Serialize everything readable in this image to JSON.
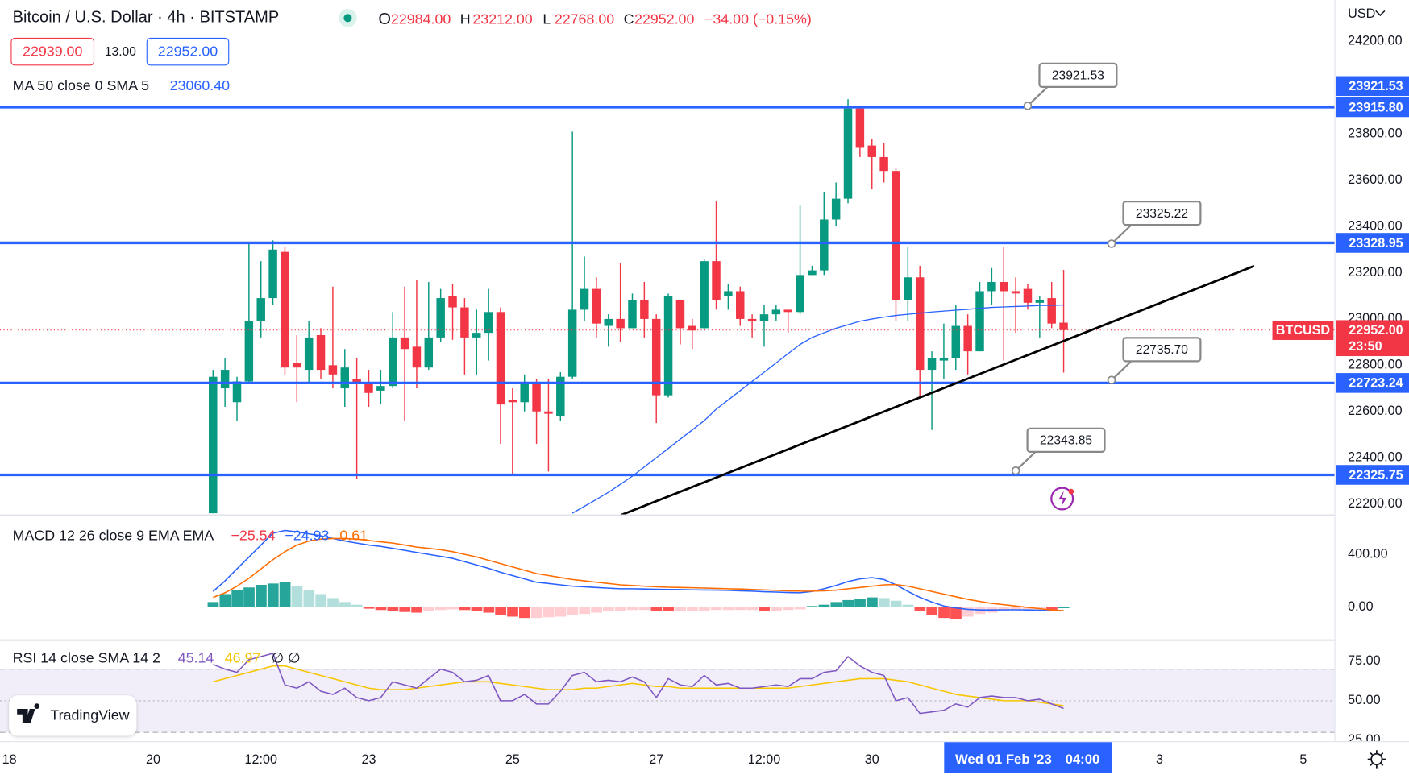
{
  "chart_data": [
    {
      "type": "candlestick",
      "title": "Bitcoin / U.S. Dollar · 4h · BITSTAMP",
      "ohlc": [
        {
          "key": "O",
          "value": "22984.00"
        },
        {
          "key": "H",
          "value": "23212.00"
        },
        {
          "key": "L",
          "value": "22768.00"
        },
        {
          "key": "C",
          "value": "22952.00"
        }
      ],
      "change": "−34.00 (−0.15%)",
      "bid": "22939.00",
      "spread": "13.00",
      "ask": "22952.00",
      "currency": "USD",
      "up_color": "#089981",
      "down_color": "#f23645",
      "open": [
        22160,
        22700,
        22640,
        22730,
        22990,
        23090,
        23290,
        22810,
        22780,
        22930,
        22800,
        22700,
        22740,
        22720,
        22690,
        22710,
        22920,
        22880,
        22790,
        22920,
        23100,
        23050,
        22920,
        22940,
        23030,
        22650,
        22640,
        22720,
        22600,
        22580,
        22750,
        23040,
        23130,
        22970,
        23000,
        22960,
        23080,
        23000,
        22670,
        23080,
        22970,
        22960,
        23250,
        23100,
        23120,
        23000,
        22990,
        23020,
        23040,
        23030,
        23190,
        23210,
        23430,
        23520,
        23910,
        23750,
        23700,
        23640,
        23080,
        23180,
        22780,
        22820,
        22830,
        22970,
        22860,
        23120,
        23160,
        23120,
        23130,
        23070,
        23090,
        22984
      ],
      "high": [
        22780,
        22830,
        22750,
        23330,
        23250,
        23340,
        23310,
        22930,
        22990,
        22960,
        23140,
        22870,
        22830,
        22780,
        22780,
        23030,
        23140,
        23170,
        23160,
        23130,
        23150,
        23090,
        23040,
        23130,
        23050,
        22700,
        22760,
        22740,
        22740,
        22770,
        23810,
        23270,
        23180,
        23020,
        23240,
        23110,
        23160,
        23020,
        23110,
        23080,
        23000,
        23260,
        23510,
        23150,
        23140,
        23020,
        23060,
        23060,
        23040,
        23490,
        23230,
        23550,
        23590,
        23950,
        23920,
        23780,
        23760,
        23650,
        23310,
        23230,
        22860,
        22980,
        23060,
        23020,
        23160,
        23220,
        23310,
        23180,
        23150,
        23100,
        23160,
        23212
      ],
      "low": [
        22160,
        22620,
        22560,
        22720,
        22920,
        23060,
        22760,
        22640,
        22720,
        22740,
        22700,
        22620,
        22310,
        22620,
        22630,
        22700,
        22560,
        22700,
        22780,
        22900,
        22910,
        22760,
        22760,
        22820,
        22460,
        22330,
        22600,
        22460,
        22340,
        22560,
        22740,
        22990,
        22920,
        22880,
        22900,
        22960,
        22920,
        22550,
        22660,
        22890,
        22870,
        22950,
        23040,
        23040,
        22970,
        22920,
        22880,
        22990,
        22940,
        23020,
        23190,
        23190,
        23400,
        23500,
        23700,
        23560,
        23590,
        22990,
        22990,
        22660,
        22520,
        22740,
        22780,
        22760,
        22860,
        23060,
        22820,
        22940,
        23040,
        22920,
        22960,
        22768
      ],
      "close": [
        22750,
        22780,
        22730,
        22990,
        23090,
        23300,
        22790,
        22790,
        22920,
        22780,
        22760,
        22790,
        22720,
        22680,
        22710,
        22920,
        22870,
        22790,
        22920,
        23090,
        23050,
        22920,
        22940,
        23030,
        22630,
        22640,
        22720,
        22600,
        22590,
        22750,
        23040,
        23130,
        22980,
        23000,
        22960,
        23080,
        23000,
        22670,
        23100,
        22960,
        22950,
        23250,
        23080,
        23120,
        23000,
        22990,
        23020,
        23040,
        23030,
        23190,
        23210,
        23430,
        23520,
        23910,
        23740,
        23700,
        23640,
        23080,
        23180,
        22780,
        22830,
        22830,
        22970,
        22860,
        23120,
        23160,
        23120,
        23110,
        23070,
        23080,
        22980,
        22952
      ],
      "series": [
        {
          "name": "MA 50 close 0 SMA 5",
          "color": "#2962ff",
          "label": "23060.40",
          "values": [
            null,
            null,
            null,
            null,
            null,
            null,
            null,
            null,
            null,
            null,
            null,
            null,
            null,
            null,
            null,
            null,
            null,
            null,
            null,
            null,
            null,
            null,
            null,
            null,
            null,
            null,
            null,
            null,
            null,
            null,
            22160,
            22190,
            22220,
            22250,
            22285,
            22320,
            22360,
            22400,
            22440,
            22480,
            22520,
            22560,
            22610,
            22650,
            22690,
            22730,
            22770,
            22810,
            22850,
            22890,
            22920,
            22940,
            22960,
            22975,
            22990,
            23000,
            23008,
            23015,
            23020,
            23025,
            23030,
            23034,
            23038,
            23042,
            23046,
            23050,
            23052,
            23054,
            23056,
            23058,
            23059,
            23060.4
          ]
        }
      ],
      "levels": [
        {
          "value": 23915.8,
          "label": "23915.80"
        },
        {
          "value": 23328.95,
          "label": "23328.95"
        },
        {
          "value": 22723.24,
          "label": "22723.24"
        },
        {
          "value": 22325.75,
          "label": "22325.75"
        }
      ],
      "level_color": "#2962ff",
      "trendline": {
        "x": [
          34.1,
          86.9
        ],
        "y": [
          22153,
          23229
        ],
        "color": "#000000"
      },
      "annotations": [
        {
          "x": 68,
          "y": 23921.53,
          "label": "23921.53",
          "on_axis": true
        },
        {
          "x": 75,
          "y": 23325.22,
          "label": "23325.22",
          "on_axis": false
        },
        {
          "x": 75,
          "y": 22735.7,
          "label": "22735.70",
          "on_axis": false
        },
        {
          "x": 67,
          "y": 22343.85,
          "label": "22343.85",
          "on_axis": false
        }
      ],
      "last": {
        "value": 22952,
        "label": "22952.00",
        "countdown": "23:50",
        "symbol": "BTCUSD",
        "color": "#f23645"
      },
      "crosshair": {
        "x": 68,
        "date": "Wed 01 Feb '23",
        "time": "04:00"
      },
      "xlim": [
        -17.78,
        93.6
      ],
      "ylim": [
        22153,
        24379
      ],
      "yticks": [
        {
          "value": 24200,
          "label": "24200.00"
        },
        {
          "value": 23800,
          "label": "23800.00"
        },
        {
          "value": 23600,
          "label": "23600.00"
        },
        {
          "value": 23400,
          "label": "23400.00"
        },
        {
          "value": 23200,
          "label": "23200.00"
        },
        {
          "value": 23000,
          "label": "23000.00"
        },
        {
          "value": 22800,
          "label": "22800.00"
        },
        {
          "value": 22600,
          "label": "22600.00"
        },
        {
          "value": 22400,
          "label": "22400.00"
        },
        {
          "value": 22200,
          "label": "22200.00"
        }
      ],
      "xticks": [
        {
          "value": -17,
          "label": "18"
        },
        {
          "value": -5,
          "label": "20"
        },
        {
          "value": 4,
          "label": "12:00"
        },
        {
          "value": 13,
          "label": "23"
        },
        {
          "value": 25,
          "label": "25"
        },
        {
          "value": 37,
          "label": "27"
        },
        {
          "value": 46,
          "label": "12:00"
        },
        {
          "value": 55,
          "label": "30"
        },
        {
          "value": 79,
          "label": "3"
        },
        {
          "value": 91,
          "label": "5"
        }
      ],
      "grid": false,
      "brand": "TradingView"
    },
    {
      "type": "macd",
      "title": "MACD 12 26 close 9 EMA EMA",
      "histogram": {
        "label": "0.61",
        "colors": [
          "#26a69a",
          "#b2dfdb",
          "#ff5252",
          "#ffcdd2"
        ],
        "values": [
          40,
          100,
          130,
          150,
          170,
          180,
          190,
          160,
          130,
          100,
          70,
          40,
          20,
          -10,
          -20,
          -30,
          -35,
          -40,
          -30,
          -20,
          -15,
          -20,
          -30,
          -40,
          -55,
          -70,
          -80,
          -80,
          -75,
          -70,
          -60,
          -50,
          -40,
          -30,
          -25,
          -20,
          -20,
          -25,
          -30,
          -30,
          -25,
          -25,
          -20,
          -20,
          -20,
          -20,
          -25,
          -25,
          -20,
          -15,
          10,
          20,
          40,
          55,
          65,
          75,
          70,
          50,
          20,
          -30,
          -60,
          -80,
          -90,
          -70,
          -50,
          -40,
          -30,
          -20,
          -15,
          -15,
          -20,
          0.61
        ]
      },
      "series": [
        {
          "color": "#2962ff",
          "label": "−25.54",
          "label_color": "#f23645",
          "values": [
            120,
            200,
            290,
            380,
            470,
            560,
            580,
            570,
            555,
            540,
            520,
            500,
            485,
            470,
            460,
            445,
            430,
            415,
            400,
            385,
            370,
            345,
            320,
            295,
            265,
            240,
            215,
            190,
            180,
            170,
            160,
            155,
            150,
            145,
            140,
            140,
            138,
            136,
            135,
            134,
            132,
            131,
            130,
            128,
            125,
            122,
            118,
            115,
            112,
            110,
            120,
            140,
            165,
            195,
            215,
            224,
            210,
            170,
            120,
            75,
            40,
            10,
            -5,
            -15,
            -20,
            -20,
            -18,
            -18,
            -20,
            -22,
            -24,
            -25.54
          ]
        },
        {
          "color": "#ff6d00",
          "label": "−24.93",
          "label_color": "#2962ff",
          "values": [
            75,
            110,
            160,
            220,
            290,
            360,
            420,
            470,
            500,
            515,
            520,
            520,
            515,
            505,
            495,
            485,
            470,
            455,
            445,
            435,
            420,
            400,
            380,
            355,
            330,
            305,
            280,
            255,
            240,
            225,
            210,
            200,
            190,
            180,
            170,
            165,
            160,
            155,
            152,
            150,
            148,
            146,
            143,
            140,
            138,
            135,
            132,
            128,
            125,
            122,
            122,
            125,
            130,
            140,
            150,
            160,
            170,
            172,
            160,
            140,
            120,
            100,
            80,
            60,
            45,
            30,
            20,
            10,
            0,
            -10,
            -20,
            -24.93
          ]
        }
      ],
      "ylim": [
        -244,
        698
      ],
      "yticks": [
        {
          "value": 400,
          "label": "400.00"
        },
        {
          "value": 0,
          "label": "0.00"
        }
      ]
    },
    {
      "type": "rsi",
      "title": "RSI 14 close SMA 14 2",
      "flags": "∅ ∅",
      "series": [
        {
          "color": "#7e57c2",
          "label": "45.14",
          "values": [
            73,
            70,
            68,
            76,
            78,
            80,
            60,
            58,
            62,
            56,
            54,
            58,
            52,
            50,
            52,
            62,
            60,
            58,
            64,
            70,
            68,
            62,
            63,
            66,
            50,
            50,
            54,
            48,
            48,
            56,
            66,
            68,
            62,
            63,
            62,
            65,
            62,
            52,
            64,
            60,
            59,
            66,
            60,
            61,
            58,
            58,
            59,
            60,
            59,
            64,
            64,
            68,
            69,
            78,
            72,
            68,
            66,
            50,
            52,
            42,
            43,
            44,
            48,
            46,
            52,
            53,
            52,
            52,
            50,
            51,
            48,
            45.14
          ]
        },
        {
          "color": "#f7c600",
          "label": "46.97",
          "values": [
            62,
            64,
            66,
            68,
            70,
            72,
            72,
            70,
            68,
            66,
            64,
            62,
            60,
            58,
            57,
            57,
            57,
            58,
            59,
            60,
            61,
            62,
            62,
            62,
            61,
            60,
            59,
            58,
            57,
            57,
            57,
            58,
            58,
            59,
            60,
            61,
            60,
            59,
            59,
            58,
            58,
            58,
            58,
            58,
            58,
            58,
            58,
            58,
            58,
            59,
            60,
            61,
            62,
            63,
            64,
            64,
            64,
            63,
            62,
            60,
            58,
            56,
            54,
            53,
            52,
            51,
            50,
            50,
            50,
            49,
            48,
            46.97
          ]
        }
      ],
      "band": [
        30,
        70
      ],
      "midline": 50,
      "band_color": "#7e57c2",
      "ylim": [
        26.1,
        88.6
      ],
      "yticks": [
        {
          "value": 75,
          "label": "75.00"
        },
        {
          "value": 50,
          "label": "50.00"
        },
        {
          "value": 25,
          "label": "25.00"
        }
      ]
    }
  ]
}
